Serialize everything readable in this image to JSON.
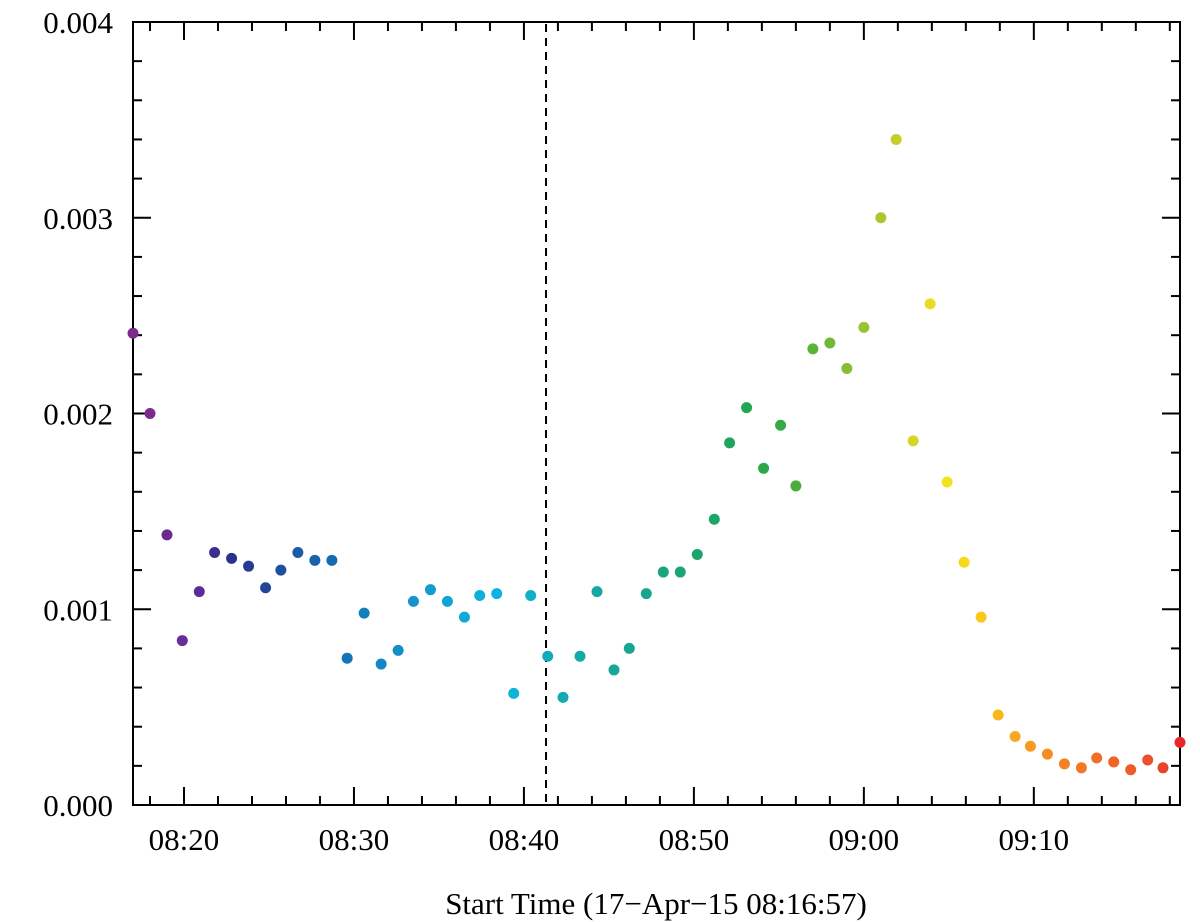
{
  "chart_data": {
    "type": "scatter",
    "title": "",
    "xlabel": "Start Time (17−Apr−15 08:16:57)",
    "ylabel": "",
    "x_unit": "minutes after 08:00",
    "xlim": [
      17.0,
      78.6
    ],
    "ylim": [
      0.0,
      0.004
    ],
    "x_ticks": [
      {
        "value": 20,
        "label": "08:20"
      },
      {
        "value": 30,
        "label": "08:30"
      },
      {
        "value": 40,
        "label": "08:40"
      },
      {
        "value": 50,
        "label": "08:50"
      },
      {
        "value": 60,
        "label": "09:00"
      },
      {
        "value": 70,
        "label": "09:10"
      }
    ],
    "y_ticks": [
      {
        "value": 0.0,
        "label": "0.000"
      },
      {
        "value": 0.001,
        "label": "0.001"
      },
      {
        "value": 0.002,
        "label": "0.002"
      },
      {
        "value": 0.003,
        "label": "0.003"
      },
      {
        "value": 0.004,
        "label": "0.004"
      }
    ],
    "vertical_line": {
      "x": 41.3,
      "style": "dashed",
      "color": "#000000"
    },
    "grid": false,
    "legend": "none",
    "points": [
      {
        "x": 17.0,
        "y": 0.00241,
        "color": "#7b2a8e"
      },
      {
        "x": 18.0,
        "y": 0.002,
        "color": "#7b2a8e"
      },
      {
        "x": 19.0,
        "y": 0.00138,
        "color": "#6b2a8e"
      },
      {
        "x": 19.9,
        "y": 0.00084,
        "color": "#6a2d98"
      },
      {
        "x": 20.9,
        "y": 0.00109,
        "color": "#5b2d9a"
      },
      {
        "x": 21.8,
        "y": 0.00129,
        "color": "#3c2d8e"
      },
      {
        "x": 22.8,
        "y": 0.00126,
        "color": "#2e318c"
      },
      {
        "x": 23.8,
        "y": 0.00122,
        "color": "#283b92"
      },
      {
        "x": 24.8,
        "y": 0.00111,
        "color": "#234599"
      },
      {
        "x": 25.7,
        "y": 0.0012,
        "color": "#1f509f"
      },
      {
        "x": 26.7,
        "y": 0.00129,
        "color": "#1b5aa6"
      },
      {
        "x": 27.7,
        "y": 0.00125,
        "color": "#1862ac"
      },
      {
        "x": 28.7,
        "y": 0.00125,
        "color": "#166bb1"
      },
      {
        "x": 29.6,
        "y": 0.00075,
        "color": "#1574b7"
      },
      {
        "x": 30.6,
        "y": 0.00098,
        "color": "#157ebd"
      },
      {
        "x": 31.6,
        "y": 0.00072,
        "color": "#1486c2"
      },
      {
        "x": 32.6,
        "y": 0.00079,
        "color": "#138ec7"
      },
      {
        "x": 33.5,
        "y": 0.00104,
        "color": "#1395cb"
      },
      {
        "x": 34.5,
        "y": 0.0011,
        "color": "#129dcf"
      },
      {
        "x": 35.5,
        "y": 0.00104,
        "color": "#11a4d3"
      },
      {
        "x": 36.5,
        "y": 0.00096,
        "color": "#10a9d6"
      },
      {
        "x": 37.4,
        "y": 0.00107,
        "color": "#0fafdb"
      },
      {
        "x": 38.4,
        "y": 0.00108,
        "color": "#0db3df"
      },
      {
        "x": 39.4,
        "y": 0.00057,
        "color": "#0fb3d6"
      },
      {
        "x": 40.4,
        "y": 0.00107,
        "color": "#10b0c9"
      },
      {
        "x": 41.4,
        "y": 0.00076,
        "color": "#11acbc"
      },
      {
        "x": 42.3,
        "y": 0.00055,
        "color": "#13aab3"
      },
      {
        "x": 43.3,
        "y": 0.00076,
        "color": "#14a9a9"
      },
      {
        "x": 44.3,
        "y": 0.00109,
        "color": "#15a8a0"
      },
      {
        "x": 45.3,
        "y": 0.00069,
        "color": "#16a799"
      },
      {
        "x": 46.2,
        "y": 0.0008,
        "color": "#17a691"
      },
      {
        "x": 47.2,
        "y": 0.00108,
        "color": "#18a688"
      },
      {
        "x": 48.2,
        "y": 0.00119,
        "color": "#19a67f"
      },
      {
        "x": 49.2,
        "y": 0.00119,
        "color": "#1aa576"
      },
      {
        "x": 50.2,
        "y": 0.00128,
        "color": "#1ba56d"
      },
      {
        "x": 51.2,
        "y": 0.00146,
        "color": "#1ca564"
      },
      {
        "x": 52.1,
        "y": 0.00185,
        "color": "#1ea55b"
      },
      {
        "x": 53.1,
        "y": 0.00203,
        "color": "#22a652"
      },
      {
        "x": 54.1,
        "y": 0.00172,
        "color": "#2aa84b"
      },
      {
        "x": 55.1,
        "y": 0.00194,
        "color": "#38aa45"
      },
      {
        "x": 56.0,
        "y": 0.00163,
        "color": "#4aae3f"
      },
      {
        "x": 57.0,
        "y": 0.00233,
        "color": "#5db339"
      },
      {
        "x": 58.0,
        "y": 0.00236,
        "color": "#72b836"
      },
      {
        "x": 59.0,
        "y": 0.00223,
        "color": "#86bd33"
      },
      {
        "x": 60.0,
        "y": 0.00244,
        "color": "#99c331"
      },
      {
        "x": 61.0,
        "y": 0.003,
        "color": "#adc82e"
      },
      {
        "x": 61.9,
        "y": 0.0034,
        "color": "#c1ce2b"
      },
      {
        "x": 62.9,
        "y": 0.00186,
        "color": "#d4d527"
      },
      {
        "x": 63.9,
        "y": 0.00256,
        "color": "#e6dc22"
      },
      {
        "x": 64.9,
        "y": 0.00165,
        "color": "#f3e31c"
      },
      {
        "x": 65.9,
        "y": 0.00124,
        "color": "#f8d81b"
      },
      {
        "x": 66.9,
        "y": 0.00096,
        "color": "#f9c81b"
      },
      {
        "x": 67.9,
        "y": 0.00046,
        "color": "#f9b71c"
      },
      {
        "x": 68.9,
        "y": 0.00035,
        "color": "#f8a81d"
      },
      {
        "x": 69.8,
        "y": 0.0003,
        "color": "#f79a1f"
      },
      {
        "x": 70.8,
        "y": 0.00026,
        "color": "#f68d21"
      },
      {
        "x": 71.8,
        "y": 0.00021,
        "color": "#f48223"
      },
      {
        "x": 72.8,
        "y": 0.00019,
        "color": "#f37824"
      },
      {
        "x": 73.7,
        "y": 0.00024,
        "color": "#f16e26"
      },
      {
        "x": 74.7,
        "y": 0.00022,
        "color": "#ef6528"
      },
      {
        "x": 75.7,
        "y": 0.00018,
        "color": "#ed5b29"
      },
      {
        "x": 76.7,
        "y": 0.00023,
        "color": "#ec502a"
      },
      {
        "x": 77.6,
        "y": 0.00019,
        "color": "#ea432c"
      },
      {
        "x": 78.6,
        "y": 0.00032,
        "color": "#e8262b"
      }
    ]
  }
}
